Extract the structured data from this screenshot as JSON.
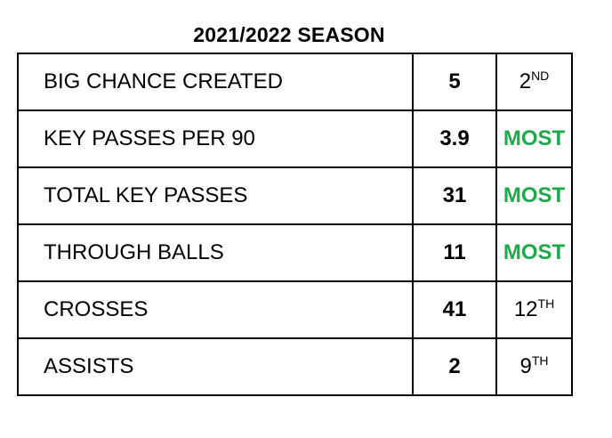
{
  "title": "2021/2022 SEASON",
  "colors": {
    "most": "#1eaa4b",
    "border": "#000000"
  },
  "rows": [
    {
      "label": "BIG CHANCE CREATED",
      "value": "5",
      "rank": "2",
      "rank_suffix": "ND",
      "highlight": false
    },
    {
      "label": "KEY PASSES PER 90",
      "value": "3.9",
      "rank": "MOST",
      "rank_suffix": "",
      "highlight": true
    },
    {
      "label": "TOTAL KEY PASSES",
      "value": "31",
      "rank": "MOST",
      "rank_suffix": "",
      "highlight": true
    },
    {
      "label": "THROUGH BALLS",
      "value": "11",
      "rank": "MOST",
      "rank_suffix": "",
      "highlight": true
    },
    {
      "label": "CROSSES",
      "value": "41",
      "rank": "12",
      "rank_suffix": "TH",
      "highlight": false
    },
    {
      "label": "ASSISTS",
      "value": "2",
      "rank": "9",
      "rank_suffix": "TH",
      "highlight": false
    }
  ]
}
